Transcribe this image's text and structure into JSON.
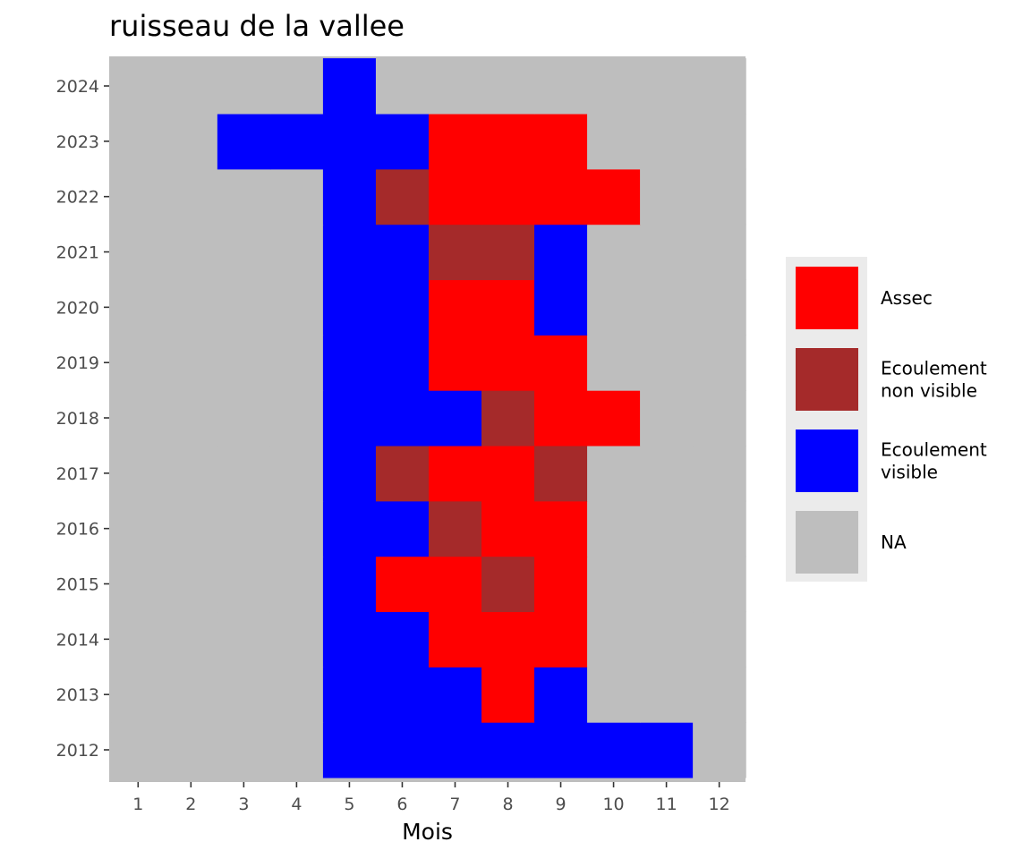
{
  "chart_data": {
    "type": "heatmap",
    "title": "ruisseau de la vallee",
    "xlabel": "Mois",
    "ylabel": "",
    "x_categories": [
      "1",
      "2",
      "3",
      "4",
      "5",
      "6",
      "7",
      "8",
      "9",
      "10",
      "11",
      "12"
    ],
    "y_categories": [
      "2012",
      "2013",
      "2014",
      "2015",
      "2016",
      "2017",
      "2018",
      "2019",
      "2020",
      "2021",
      "2022",
      "2023",
      "2024"
    ],
    "grid": false,
    "legend_position": "right",
    "legend": [
      {
        "key": "A",
        "label_lines": [
          "Assec"
        ],
        "color": "#ff0000"
      },
      {
        "key": "E",
        "label_lines": [
          "Ecoulement",
          "non visible"
        ],
        "color": "#a52a2a"
      },
      {
        "key": "V",
        "label_lines": [
          "Ecoulement",
          "visible"
        ],
        "color": "#0000ff"
      },
      {
        "key": "N",
        "label_lines": [
          "NA"
        ],
        "color": "#bebebe"
      }
    ],
    "rows": [
      {
        "year": "2012",
        "values": [
          "N",
          "N",
          "N",
          "N",
          "V",
          "V",
          "V",
          "V",
          "V",
          "V",
          "V",
          "N"
        ]
      },
      {
        "year": "2013",
        "values": [
          "N",
          "N",
          "N",
          "N",
          "V",
          "V",
          "V",
          "A",
          "V",
          "N",
          "N",
          "N"
        ]
      },
      {
        "year": "2014",
        "values": [
          "N",
          "N",
          "N",
          "N",
          "V",
          "V",
          "A",
          "A",
          "A",
          "N",
          "N",
          "N"
        ]
      },
      {
        "year": "2015",
        "values": [
          "N",
          "N",
          "N",
          "N",
          "V",
          "A",
          "A",
          "E",
          "A",
          "N",
          "N",
          "N"
        ]
      },
      {
        "year": "2016",
        "values": [
          "N",
          "N",
          "N",
          "N",
          "V",
          "V",
          "E",
          "A",
          "A",
          "N",
          "N",
          "N"
        ]
      },
      {
        "year": "2017",
        "values": [
          "N",
          "N",
          "N",
          "N",
          "V",
          "E",
          "A",
          "A",
          "E",
          "N",
          "N",
          "N"
        ]
      },
      {
        "year": "2018",
        "values": [
          "N",
          "N",
          "N",
          "N",
          "V",
          "V",
          "V",
          "E",
          "A",
          "A",
          "N",
          "N"
        ]
      },
      {
        "year": "2019",
        "values": [
          "N",
          "N",
          "N",
          "N",
          "V",
          "V",
          "A",
          "A",
          "A",
          "N",
          "N",
          "N"
        ]
      },
      {
        "year": "2020",
        "values": [
          "N",
          "N",
          "N",
          "N",
          "V",
          "V",
          "A",
          "A",
          "V",
          "N",
          "N",
          "N"
        ]
      },
      {
        "year": "2021",
        "values": [
          "N",
          "N",
          "N",
          "N",
          "V",
          "V",
          "E",
          "E",
          "V",
          "N",
          "N",
          "N"
        ]
      },
      {
        "year": "2022",
        "values": [
          "N",
          "N",
          "N",
          "N",
          "V",
          "E",
          "A",
          "A",
          "A",
          "A",
          "N",
          "N"
        ]
      },
      {
        "year": "2023",
        "values": [
          "N",
          "N",
          "V",
          "V",
          "V",
          "V",
          "A",
          "A",
          "A",
          "N",
          "N",
          "N"
        ]
      },
      {
        "year": "2024",
        "values": [
          "N",
          "N",
          "N",
          "N",
          "V",
          "N",
          "N",
          "N",
          "N",
          "N",
          "N",
          "N"
        ]
      }
    ]
  }
}
